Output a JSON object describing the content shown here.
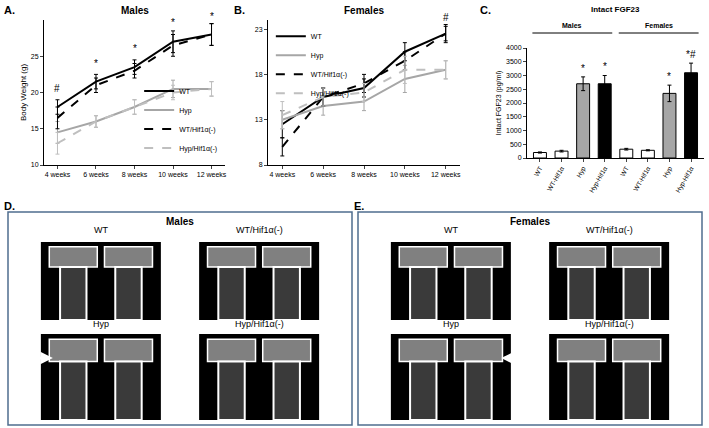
{
  "chart_data": [
    {
      "panel": "A.",
      "type": "line",
      "title": "Males",
      "y_label": "Body Weight (g)",
      "categories": [
        "4 weeks",
        "6 weeks",
        "8 weeks",
        "10 weeks",
        "12 weeks"
      ],
      "ylim": [
        10,
        30
      ],
      "yticks": [
        10,
        15,
        20,
        25
      ],
      "grid": false,
      "legend": "bottom right",
      "series": [
        {
          "name": "WT",
          "color": "#000000",
          "line_style": "solid",
          "values": [
            18,
            21.5,
            23.5,
            27,
            28
          ],
          "errors": [
            1,
            1,
            1,
            1.5,
            1.5
          ]
        },
        {
          "name": "Hyp",
          "color": "#a6a6a6",
          "line_style": "solid",
          "values": [
            14.5,
            16,
            18,
            20.5,
            20.5
          ],
          "errors": [
            1.5,
            0.8,
            1,
            1.2,
            1
          ]
        },
        {
          "name": "WT/Hif1α(-)",
          "color": "#000000",
          "line_style": "dash",
          "values": [
            16.5,
            21,
            23,
            26.5,
            28
          ],
          "errors": [
            1.5,
            1,
            1,
            1.5,
            1.5
          ]
        },
        {
          "name": "Hyp/Hif1α(-)",
          "color": "#bfbfbf",
          "line_style": "dash",
          "values": [
            13,
            16,
            18,
            20,
            20.5
          ],
          "errors": [
            1.5,
            0.8,
            1,
            1,
            1
          ]
        }
      ],
      "annotations": [
        {
          "text": "#",
          "x": 0,
          "y": 19.5
        },
        {
          "text": "*",
          "x": 1,
          "y": 23
        },
        {
          "text": "*",
          "x": 2,
          "y": 25
        },
        {
          "text": "*",
          "x": 3,
          "y": 28.6
        },
        {
          "text": "*",
          "x": 4,
          "y": 29.5
        }
      ]
    },
    {
      "panel": "B.",
      "type": "line",
      "title": "Females",
      "categories": [
        "4 weeks",
        "6 weeks",
        "8 weeks",
        "10 weeks",
        "12 weeks"
      ],
      "ylim": [
        8,
        24
      ],
      "yticks": [
        8,
        13,
        18,
        23
      ],
      "grid": false,
      "legend": "top left",
      "series": [
        {
          "name": "WT",
          "color": "#000000",
          "line_style": "solid",
          "values": [
            12.5,
            15.5,
            16.5,
            20.5,
            22.5
          ],
          "errors": [
            1.5,
            1,
            1,
            1,
            0.8
          ]
        },
        {
          "name": "Hyp",
          "color": "#a6a6a6",
          "line_style": "solid",
          "values": [
            13,
            14.5,
            15,
            17.5,
            18.5
          ],
          "errors": [
            1,
            1,
            1,
            1.5,
            1
          ]
        },
        {
          "name": "WT/Hif1α(-)",
          "color": "#000000",
          "line_style": "dash",
          "values": [
            10,
            15.5,
            17,
            19.5,
            22.5
          ],
          "errors": [
            1,
            1,
            1,
            1,
            1
          ]
        },
        {
          "name": "Hyp/Hif1α(-)",
          "color": "#bfbfbf",
          "line_style": "dash",
          "values": [
            13.5,
            15.5,
            16,
            18.5,
            18.5
          ],
          "errors": [
            1.5,
            1,
            1,
            1.5,
            1
          ]
        }
      ],
      "annotations": [
        {
          "text": "#",
          "x": 4,
          "y": 23.4
        }
      ]
    },
    {
      "panel": "C.",
      "type": "bar",
      "title": "Intact FGF23",
      "y_label": "Intact FGF23 (pg/ml)",
      "categories": [
        "WT",
        "WT-Hif1α",
        "Hyp",
        "Hyp-Hif1α",
        "WT",
        "WT-Hif1α",
        "Hyp",
        "Hyp-Hif1α"
      ],
      "values": [
        200,
        250,
        2700,
        2700,
        320,
        280,
        2350,
        3100
      ],
      "errors": [
        20,
        30,
        250,
        300,
        30,
        20,
        300,
        350
      ],
      "colors": [
        "#ffffff",
        "#ffffff",
        "#a6a6a6",
        "#000000",
        "#ffffff",
        "#ffffff",
        "#a6a6a6",
        "#000000"
      ],
      "ylim": [
        0,
        4000
      ],
      "yticks": [
        0,
        500,
        1000,
        1500,
        2000,
        2500,
        3000,
        3500,
        4000
      ],
      "grid": false,
      "groups": [
        {
          "name": "Males",
          "start": 0,
          "end": 3
        },
        {
          "name": "Females",
          "start": 4,
          "end": 7
        }
      ],
      "annotations": [
        {
          "text": "*",
          "x": 2,
          "y": 3000
        },
        {
          "text": "*",
          "x": 3,
          "y": 3050
        },
        {
          "text": "*",
          "x": 6,
          "y": 2700
        },
        {
          "text": "*#",
          "x": 7,
          "y": 3500
        }
      ]
    }
  ],
  "image_panels": [
    {
      "panel": "D.",
      "title": "Males",
      "images": [
        "WT",
        "WT/Hif1α(-)",
        "Hyp",
        "Hyp/Hif1α(-)"
      ]
    },
    {
      "panel": "E.",
      "title": "Females",
      "images": [
        "WT",
        "WT/Hif1α(-)",
        "Hyp",
        "Hyp/Hif1α(-)"
      ]
    }
  ]
}
